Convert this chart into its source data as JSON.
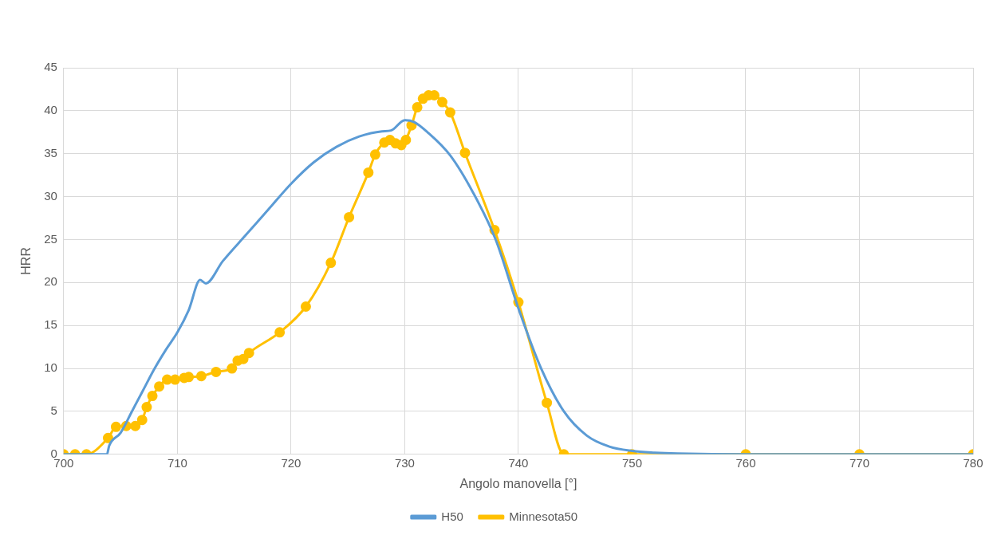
{
  "chart_data": {
    "type": "line",
    "xlabel": "Angolo manovella [°]",
    "ylabel": "HRR",
    "xlim": [
      700,
      780
    ],
    "xticks": [
      700,
      710,
      720,
      730,
      740,
      750,
      760,
      770,
      780
    ],
    "ylim": [
      0,
      45
    ],
    "yticks": [
      0,
      5,
      10,
      15,
      20,
      25,
      30,
      35,
      40,
      45
    ],
    "grid": true,
    "legend": "bottom",
    "series": [
      {
        "name": "H50",
        "color": "#5b9bd5",
        "marker": "none",
        "x": [
          700,
          702,
          703.8,
          704,
          705,
          706,
          707,
          708,
          709,
          710,
          711,
          712,
          712.5,
          714,
          716,
          718,
          720,
          722,
          724,
          726,
          728,
          728.8,
          730,
          730.8,
          732,
          734,
          736,
          738,
          740,
          742,
          744,
          746,
          748,
          750,
          752,
          754,
          760,
          770,
          780
        ],
        "values": [
          0,
          0,
          0,
          1.0,
          2.5,
          5,
          7.5,
          10,
          12.2,
          14.2,
          16.8,
          20.3,
          19.9,
          22.5,
          25.5,
          28.5,
          31.5,
          34,
          35.8,
          37,
          37.6,
          37.7,
          38.9,
          38.7,
          37.5,
          34.8,
          30.5,
          25,
          17,
          10,
          5,
          2.2,
          0.9,
          0.4,
          0.2,
          0.1,
          0,
          0,
          0
        ]
      },
      {
        "name": "Minnesota50",
        "color": "#ffc000",
        "marker": "circle",
        "x": [
          700,
          701,
          702,
          703.9,
          704.6,
          705.5,
          706.3,
          706.9,
          707.3,
          707.8,
          708.4,
          709.1,
          709.8,
          710.6,
          711,
          712.1,
          713.4,
          714.8,
          715.3,
          715.8,
          716.3,
          719,
          721.3,
          723.5,
          725.1,
          726.8,
          727.4,
          728.2,
          728.7,
          729.2,
          729.7,
          730.1,
          730.6,
          731.1,
          731.6,
          732.1,
          732.6,
          733.3,
          734,
          735.3,
          737.9,
          740,
          742.5,
          744,
          750,
          760,
          770,
          780
        ],
        "values": [
          0,
          0,
          0,
          1.9,
          3.2,
          3.3,
          3.3,
          4.0,
          5.5,
          6.8,
          7.9,
          8.7,
          8.7,
          8.9,
          9.0,
          9.1,
          9.6,
          10.0,
          10.9,
          11.1,
          11.8,
          14.2,
          17.2,
          22.3,
          27.6,
          32.8,
          34.9,
          36.3,
          36.6,
          36.2,
          36.0,
          36.6,
          38.3,
          40.4,
          41.4,
          41.8,
          41.8,
          41.0,
          39.8,
          35.1,
          26.1,
          17.7,
          6.0,
          0,
          0,
          0,
          0,
          0
        ]
      }
    ]
  }
}
